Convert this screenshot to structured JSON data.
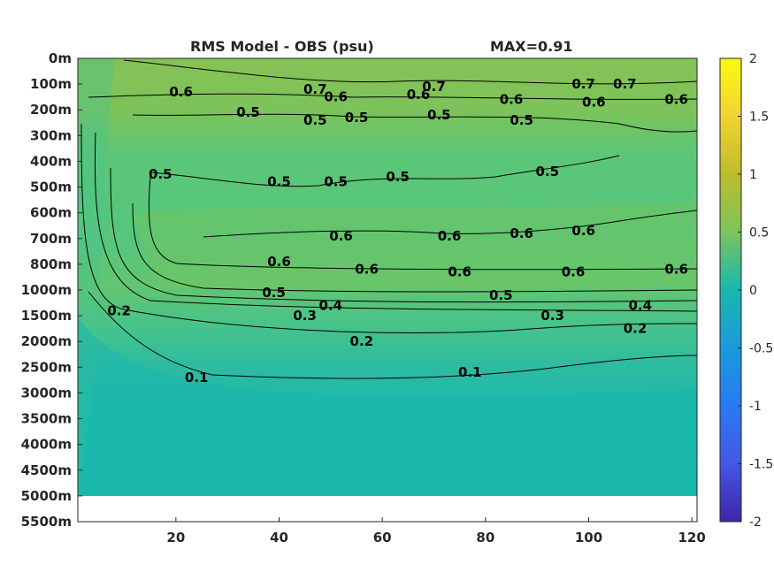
{
  "chart_data": {
    "type": "heatmap",
    "title": "RMS Model - OBS (psu)",
    "max_label": "MAX=0.91",
    "xlim": [
      1,
      121
    ],
    "x_ticks": [
      20,
      40,
      60,
      80,
      100,
      120
    ],
    "y_ticks": [
      "0m",
      "100m",
      "200m",
      "300m",
      "400m",
      "500m",
      "600m",
      "700m",
      "800m",
      "1000m",
      "1500m",
      "2000m",
      "2500m",
      "3000m",
      "3500m",
      "4000m",
      "4500m",
      "5000m",
      "5500m"
    ],
    "colorbar": {
      "min": -2,
      "max": 2,
      "ticks": [
        "2",
        "1.5",
        "1",
        "0.5",
        "0",
        "-0.5",
        "-1",
        "-1.5",
        "-2"
      ]
    },
    "contour_levels": [
      0.1,
      0.2,
      0.3,
      0.4,
      0.5,
      0.6,
      0.7
    ],
    "contour_labels": [
      {
        "text": "0.7",
        "x": 47,
        "y": 1.2
      },
      {
        "text": "0.7",
        "x": 70,
        "y": 1.1
      },
      {
        "text": "0.7",
        "x": 99,
        "y": 1.0
      },
      {
        "text": "0.7",
        "x": 107,
        "y": 1.0
      },
      {
        "text": "0.6",
        "x": 21,
        "y": 1.3
      },
      {
        "text": "0.6",
        "x": 51,
        "y": 1.5
      },
      {
        "text": "0.6",
        "x": 67,
        "y": 1.4
      },
      {
        "text": "0.6",
        "x": 85,
        "y": 1.6
      },
      {
        "text": "0.6",
        "x": 101,
        "y": 1.7
      },
      {
        "text": "0.6",
        "x": 117,
        "y": 1.6
      },
      {
        "text": "0.5",
        "x": 34,
        "y": 2.1
      },
      {
        "text": "0.5",
        "x": 47,
        "y": 2.4
      },
      {
        "text": "0.5",
        "x": 55,
        "y": 2.3
      },
      {
        "text": "0.5",
        "x": 71,
        "y": 2.2
      },
      {
        "text": "0.5",
        "x": 87,
        "y": 2.4
      },
      {
        "text": "0.5",
        "x": 17,
        "y": 4.5
      },
      {
        "text": "0.5",
        "x": 40,
        "y": 4.8
      },
      {
        "text": "0.5",
        "x": 51,
        "y": 4.8
      },
      {
        "text": "0.5",
        "x": 63,
        "y": 4.6
      },
      {
        "text": "0.5",
        "x": 92,
        "y": 4.4
      },
      {
        "text": "0.6",
        "x": 52,
        "y": 6.9
      },
      {
        "text": "0.6",
        "x": 73,
        "y": 6.9
      },
      {
        "text": "0.6",
        "x": 87,
        "y": 6.8
      },
      {
        "text": "0.6",
        "x": 99,
        "y": 6.7
      },
      {
        "text": "0.6",
        "x": 40,
        "y": 7.9
      },
      {
        "text": "0.6",
        "x": 57,
        "y": 8.2
      },
      {
        "text": "0.6",
        "x": 75,
        "y": 8.3
      },
      {
        "text": "0.6",
        "x": 97,
        "y": 8.3
      },
      {
        "text": "0.6",
        "x": 117,
        "y": 8.2
      },
      {
        "text": "0.5",
        "x": 39,
        "y": 9.1
      },
      {
        "text": "0.5",
        "x": 83,
        "y": 9.2
      },
      {
        "text": "0.4",
        "x": 50,
        "y": 9.6
      },
      {
        "text": "0.4",
        "x": 110,
        "y": 9.6
      },
      {
        "text": "0.3",
        "x": 45,
        "y": 10.0
      },
      {
        "text": "0.3",
        "x": 93,
        "y": 10.0
      },
      {
        "text": "0.2",
        "x": 56,
        "y": 11.0
      },
      {
        "text": "0.2",
        "x": 109,
        "y": 10.5
      },
      {
        "text": "0.2",
        "x": 9,
        "y": 9.8
      },
      {
        "text": "0.1",
        "x": 24,
        "y": 12.4
      },
      {
        "text": "0.1",
        "x": 77,
        "y": 12.2
      }
    ]
  },
  "colors": {
    "background_field": "#5cc676",
    "upper_band": "#7fc45a",
    "deep_field": "#22b7ab",
    "mid_field": "#3cbe95",
    "colormap": [
      "#3e26a8",
      "#4a4ce5",
      "#2a7cfa",
      "#15a2da",
      "#17bab0",
      "#4fc27f",
      "#9dc33b",
      "#e2b82b",
      "#f9e01f"
    ]
  }
}
